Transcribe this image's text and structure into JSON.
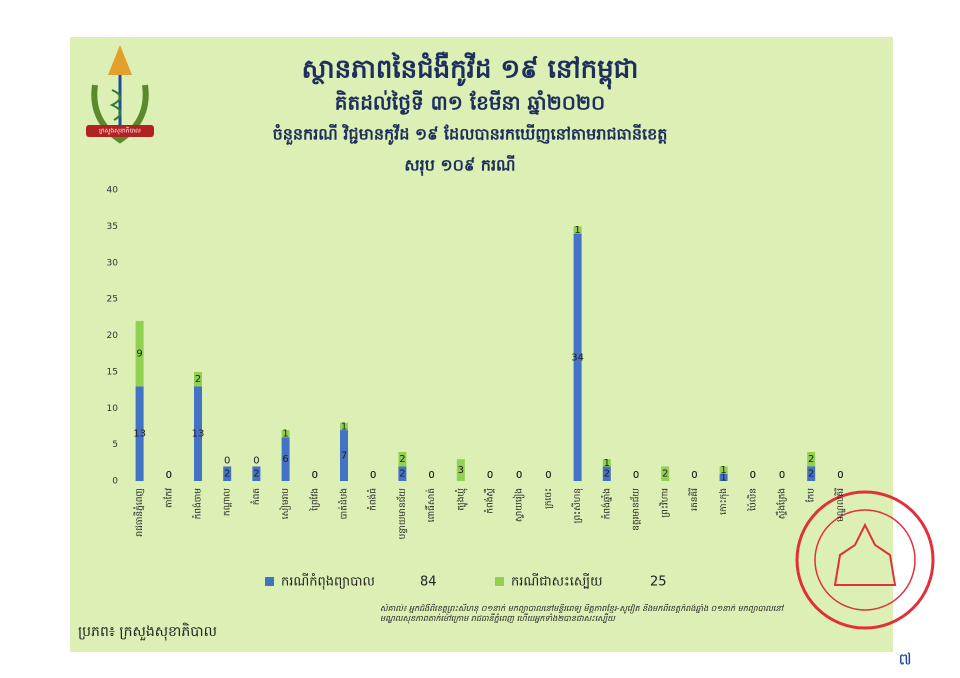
{
  "logo_label": "ក្រសួងសុខាភិបាល",
  "chart_data": {
    "type": "bar",
    "stacked": true,
    "title": "ស្ថានភាពនៃជំងឺកូវីដ ១៩ នៅកម្ពុជា",
    "subtitle": "គិតដល់ថ្ងៃទី ៣១ ខែមីនា ឆ្នាំ២០២០",
    "heading": "ចំនួនករណី វិជ្ជមានកូវីដ ១៩ ដែលបានរកឃើញនៅតាមរាជធានីខេត្ត",
    "total_label": "សរុប ១០៩ ករណី",
    "categories": [
      "រាជធានីភ្នំពេញ",
      "តាកែវ",
      "កំពង់ចាម",
      "កណ្ដាល",
      "កំពត",
      "សៀមរាប",
      "ព្រៃវែង",
      "បាត់ដំបង",
      "កំពង់ធំ",
      "បន្ទាយមានជ័យ",
      "ពោធិ៍សាត់",
      "ត្បូងឃ្មុំ",
      "កំពង់ស្ពឺ",
      "ស្វាយរៀង",
      "ក្រចេះ",
      "ព្រះសីហនុ",
      "កំពង់ឆ្នាំង",
      "ឧត្ដរមានជ័យ",
      "ព្រះវិហារ",
      "រតនគិរី",
      "កោះកុង",
      "ប៉ៃលិន",
      "ស្ទឹងត្រែង",
      "កែប",
      "មណ្ឌលគិរី"
    ],
    "series": [
      {
        "name": "ករណីកំពុងព្យាបាល",
        "total": 84,
        "color": "#4472c4",
        "values": [
          13,
          0,
          13,
          2,
          2,
          6,
          0,
          7,
          0,
          2,
          0,
          0,
          0,
          0,
          0,
          34,
          2,
          0,
          0,
          0,
          1,
          0,
          0,
          2,
          0
        ]
      },
      {
        "name": "ករណីជាសះស្បើយ",
        "total": 25,
        "color": "#92d050",
        "values": [
          9,
          0,
          2,
          0,
          0,
          1,
          0,
          1,
          0,
          2,
          0,
          3,
          0,
          0,
          0,
          1,
          1,
          0,
          2,
          0,
          1,
          0,
          0,
          2,
          0
        ]
      }
    ],
    "ylim": [
      0,
      40
    ],
    "yticks": [
      0,
      5,
      10,
      15,
      20,
      25,
      30,
      35,
      40
    ],
    "grid": false,
    "source": "ប្រភព៖ ក្រសួងសុខាភិបាល",
    "note": "សំគាល់៖ អ្នកជំងឺពីខេត្តព្រះសីហនុ ០១នាក់ មកព្យាបាលនៅមន្ទីរពេទ្យ មិត្តភាពខ្មែរ-សូវៀត និងមកពីខេត្តកំពង់ឆ្នាំង ០១នាក់ មកព្យាបាលនៅមណ្ឌលសុខភាពតាក់ម៉ៅក្រោម រាជធានីភ្នំពេញ ហើយអ្នកទាំង២បានជាសះស្បើយ",
    "page_number": "៧"
  }
}
